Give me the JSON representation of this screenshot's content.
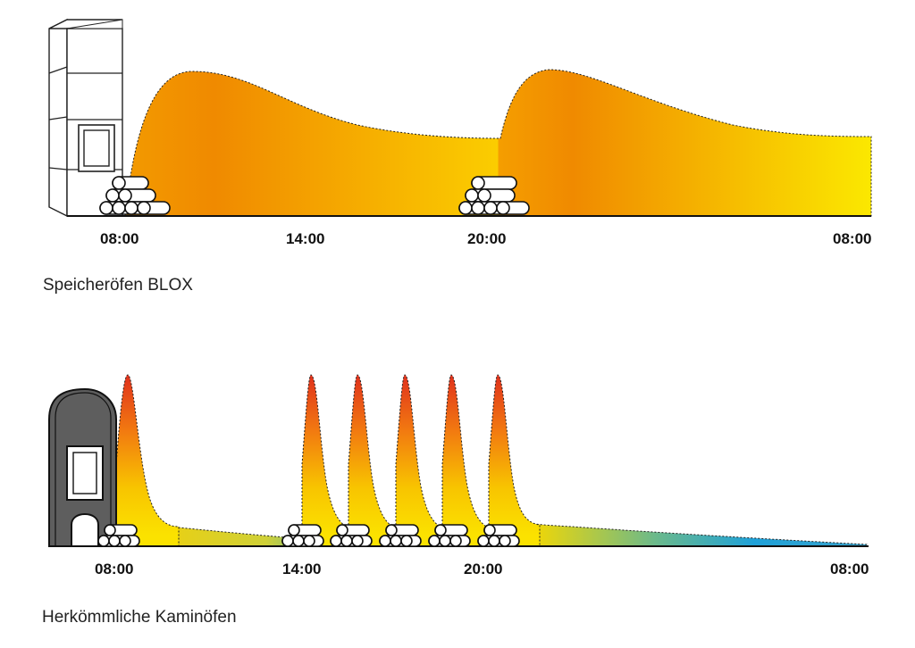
{
  "top_panel": {
    "caption": "Speicheröfen BLOX",
    "time_labels": [
      "08:00",
      "14:00",
      "20:00",
      "08:00"
    ],
    "heat_colors": [
      "#f08a00",
      "#f5a800",
      "#fbe500"
    ]
  },
  "bottom_panel": {
    "caption": "Herkömmliche Kaminöfen",
    "time_labels": [
      "08:00",
      "14:00",
      "20:00",
      "08:00"
    ],
    "heat_colors": [
      "#e63a1e",
      "#f7b200",
      "#fbe200",
      "#2fa8d8"
    ]
  }
}
